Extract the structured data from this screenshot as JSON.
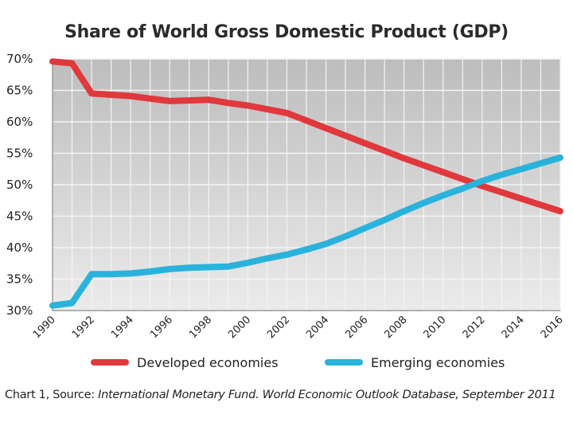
{
  "chart_data": {
    "type": "line",
    "title": "Share of World Gross Domestic Product (GDP)",
    "xlabel": "",
    "ylabel": "",
    "x": [
      1990,
      1991,
      1992,
      1993,
      1994,
      1995,
      1996,
      1997,
      1998,
      1999,
      2000,
      2001,
      2002,
      2003,
      2004,
      2005,
      2006,
      2007,
      2008,
      2009,
      2010,
      2011,
      2012,
      2013,
      2014,
      2015,
      2016
    ],
    "xlim": [
      1990,
      2016
    ],
    "ylim": [
      30,
      70
    ],
    "x_ticks": [
      "1990",
      "1992",
      "1994",
      "1996",
      "1998",
      "2000",
      "2002",
      "2004",
      "2006",
      "2008",
      "2010",
      "2012",
      "2014",
      "2016"
    ],
    "x_tick_values": [
      1990,
      1992,
      1994,
      1996,
      1998,
      2000,
      2002,
      2004,
      2006,
      2008,
      2010,
      2012,
      2014,
      2016
    ],
    "y_ticks": [
      "30%",
      "35%",
      "40%",
      "45%",
      "50%",
      "55%",
      "60%",
      "65%",
      "70%"
    ],
    "y_tick_values": [
      30,
      35,
      40,
      45,
      50,
      55,
      60,
      65,
      70
    ],
    "grid": true,
    "legend_position": "bottom",
    "series": [
      {
        "name": "Developed economies",
        "color": "#e0383c",
        "values": [
          69.6,
          69.3,
          64.5,
          64.3,
          64.1,
          63.7,
          63.3,
          63.4,
          63.5,
          63.0,
          62.6,
          62.0,
          61.4,
          60.2,
          59.0,
          57.8,
          56.6,
          55.4,
          54.2,
          53.1,
          52.0,
          50.9,
          49.8,
          48.8,
          47.8,
          46.8,
          45.8
        ]
      },
      {
        "name": "Emerging economies",
        "color": "#29b3dc",
        "values": [
          30.8,
          31.2,
          35.8,
          35.8,
          35.9,
          36.2,
          36.6,
          36.8,
          36.9,
          37.0,
          37.6,
          38.3,
          38.9,
          39.7,
          40.6,
          41.8,
          43.1,
          44.4,
          45.8,
          47.1,
          48.3,
          49.4,
          50.6,
          51.6,
          52.5,
          53.4,
          54.3
        ]
      }
    ]
  },
  "caption": {
    "prefix": "Chart 1, Source: ",
    "source": "International Monetary Fund. World Economic Outlook Database, September 2011"
  }
}
